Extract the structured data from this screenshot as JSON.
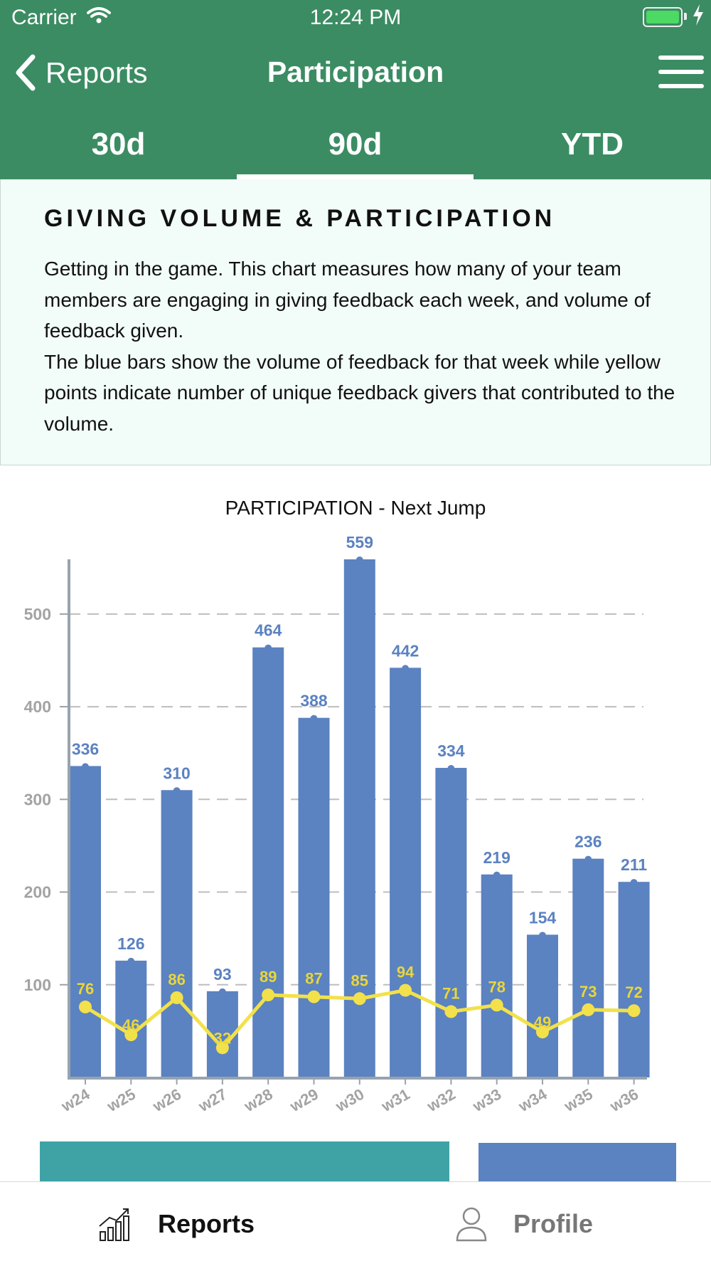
{
  "status_bar": {
    "carrier": "Carrier",
    "time": "12:24 PM"
  },
  "nav": {
    "back_label": "Reports",
    "title": "Participation"
  },
  "tabs": [
    {
      "label": "30d",
      "active": false
    },
    {
      "label": "90d",
      "active": true
    },
    {
      "label": "YTD",
      "active": false
    }
  ],
  "description": {
    "title": "GIVING VOLUME & PARTICIPATION",
    "paragraph1": "Getting in the game. This chart measures how many of your team members are engaging in giving feedback each week, and volume of feedback given.",
    "paragraph2": "The blue bars show the volume of feedback for that week while yellow points indicate number of unique feedback givers that contributed to the volume."
  },
  "chart_data": {
    "type": "bar",
    "title": "PARTICIPATION - Next Jump",
    "categories": [
      "w24",
      "w25",
      "w26",
      "w27",
      "w28",
      "w29",
      "w30",
      "w31",
      "w32",
      "w33",
      "w34",
      "w35",
      "w36"
    ],
    "series": [
      {
        "values": [
          336,
          126,
          310,
          93,
          464,
          388,
          559,
          442,
          334,
          219,
          154,
          236,
          211
        ]
      },
      {
        "values": [
          76,
          46,
          86,
          32,
          89,
          87,
          85,
          94,
          71,
          78,
          49,
          73,
          72
        ]
      }
    ],
    "y_ticks": [
      100,
      200,
      300,
      400,
      500
    ],
    "ylim": [
      0,
      559
    ],
    "grid": true,
    "colors": {
      "bars": "#5b82c1",
      "line": "#f2e14a",
      "line_labels": "#e9d63a",
      "bar_labels": "#5b82c1",
      "axis": "#97a3ad",
      "tick_labels": "#a3a3a3"
    }
  },
  "tabbar": {
    "reports_label": "Reports",
    "profile_label": "Profile"
  },
  "colors": {
    "brand_green": "#3b8c63",
    "legend_teal": "#3fa3a6",
    "legend_blue": "#5b82c1"
  }
}
